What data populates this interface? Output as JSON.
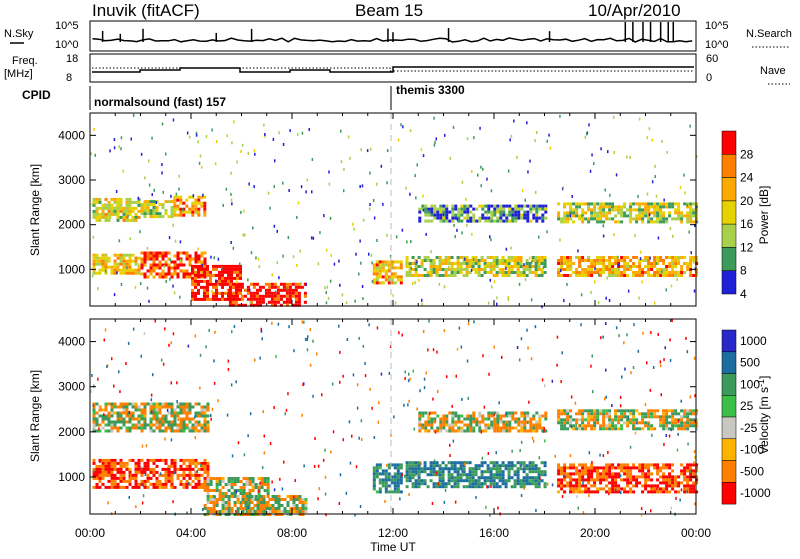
{
  "header": {
    "station": "Inuvik (fitACF)",
    "beam": "Beam 15",
    "date": "10/Apr/2010"
  },
  "strip_labels": {
    "nsky": "N.Sky",
    "nsearch": "N.Search",
    "freq": "Freq.",
    "mhz": "[MHz]",
    "nave": "Nave",
    "cpid": "CPID",
    "nsky_ticks": [
      "10^5",
      "10^0"
    ],
    "nsearch_ticks": [
      "10^5",
      "10^0"
    ],
    "freq_ticks": [
      "18",
      "8"
    ],
    "nave_ticks": [
      "60",
      "0"
    ]
  },
  "cpid_segments": [
    {
      "label": "normalsound (fast) 157",
      "start_hour": 0
    },
    {
      "label": "themis 3300",
      "start_hour": 12
    }
  ],
  "legends": {
    "power": {
      "title": "Power [dB]",
      "ticks": [
        "28",
        "24",
        "20",
        "16",
        "12",
        "8",
        "4"
      ],
      "colors": [
        "#ff0000",
        "#ff7f00",
        "#ffaa00",
        "#e5d200",
        "#a8d04a",
        "#3c9b5a",
        "#2020d8"
      ]
    },
    "velocity": {
      "title": "Velocity [m s",
      "title_sup": "-1",
      "title_end": "]",
      "ticks": [
        "1000",
        "500",
        "100",
        "25",
        "-25",
        "-100",
        "-500",
        "-1000"
      ],
      "colors": [
        "#2828c8",
        "#1c6ea0",
        "#3c9b5a",
        "#3cc04a",
        "#c8c8c0",
        "#ffb200",
        "#ff7f00",
        "#ff0000"
      ]
    }
  },
  "chart_data": [
    {
      "type": "heatmap",
      "name": "power",
      "title": "Beam 15",
      "ylabel": "Slant Range [km]",
      "xlabel": "Time UT",
      "x_range_hours": [
        0,
        24
      ],
      "ylim": [
        180,
        4500
      ],
      "yticks": [
        "1000",
        "2000",
        "3000",
        "4000"
      ],
      "xticks": [
        "00:00",
        "04:00",
        "08:00",
        "12:00",
        "16:00",
        "20:00",
        "00:00"
      ],
      "cells": [
        {
          "t0": 0.1,
          "t1": 2.0,
          "r0": 900,
          "r1": 1350,
          "v": 18
        },
        {
          "t0": 0.1,
          "t1": 2.0,
          "r0": 2100,
          "r1": 2600,
          "v": 16
        },
        {
          "t0": 2.0,
          "t1": 3.3,
          "r0": 2150,
          "r1": 2550,
          "v": 14
        },
        {
          "t0": 3.3,
          "t1": 4.6,
          "r0": 2200,
          "r1": 2650,
          "v": 22
        },
        {
          "t0": 2.0,
          "t1": 4.5,
          "r0": 800,
          "r1": 1400,
          "v": 26
        },
        {
          "t0": 4.0,
          "t1": 6.0,
          "r0": 300,
          "r1": 1100,
          "v": 30
        },
        {
          "t0": 5.5,
          "t1": 8.5,
          "r0": 180,
          "r1": 700,
          "v": 30
        },
        {
          "t0": 11.2,
          "t1": 12.3,
          "r0": 700,
          "r1": 1200,
          "v": 20
        },
        {
          "t0": 12.5,
          "t1": 18.0,
          "r0": 850,
          "r1": 1300,
          "v": 14
        },
        {
          "t0": 13.0,
          "t1": 18.0,
          "r0": 2050,
          "r1": 2450,
          "v": 8
        },
        {
          "t0": 18.5,
          "t1": 24.0,
          "r0": 2050,
          "r1": 2500,
          "v": 14
        },
        {
          "t0": 18.5,
          "t1": 24.0,
          "r0": 850,
          "r1": 1300,
          "v": 20
        }
      ]
    },
    {
      "type": "heatmap",
      "name": "velocity",
      "ylabel": "Slant Range [km]",
      "xlabel": "Time UT",
      "x_range_hours": [
        0,
        24
      ],
      "ylim": [
        180,
        4500
      ],
      "yticks": [
        "1000",
        "2000",
        "3000",
        "4000"
      ],
      "xticks": [
        "00:00",
        "04:00",
        "08:00",
        "12:00",
        "16:00",
        "20:00",
        "00:00"
      ],
      "cells": [
        {
          "t0": 0.1,
          "t1": 4.7,
          "r0": 2050,
          "r1": 2650,
          "v": 0
        },
        {
          "t0": 0.1,
          "t1": 4.7,
          "r0": 800,
          "r1": 1400,
          "v": -300
        },
        {
          "t0": 4.5,
          "t1": 7.0,
          "r0": 200,
          "r1": 1000,
          "v": 20
        },
        {
          "t0": 6.0,
          "t1": 8.5,
          "r0": 200,
          "r1": 600,
          "v": 0
        },
        {
          "t0": 11.2,
          "t1": 12.3,
          "r0": 700,
          "r1": 1300,
          "v": 300
        },
        {
          "t0": 12.5,
          "t1": 18.0,
          "r0": 800,
          "r1": 1350,
          "v": 300
        },
        {
          "t0": 13.0,
          "t1": 18.0,
          "r0": 2050,
          "r1": 2450,
          "v": 0
        },
        {
          "t0": 18.5,
          "t1": 24.0,
          "r0": 2050,
          "r1": 2500,
          "v": 0
        },
        {
          "t0": 18.5,
          "t1": 24.0,
          "r0": 700,
          "r1": 1300,
          "v": -300
        }
      ]
    }
  ]
}
